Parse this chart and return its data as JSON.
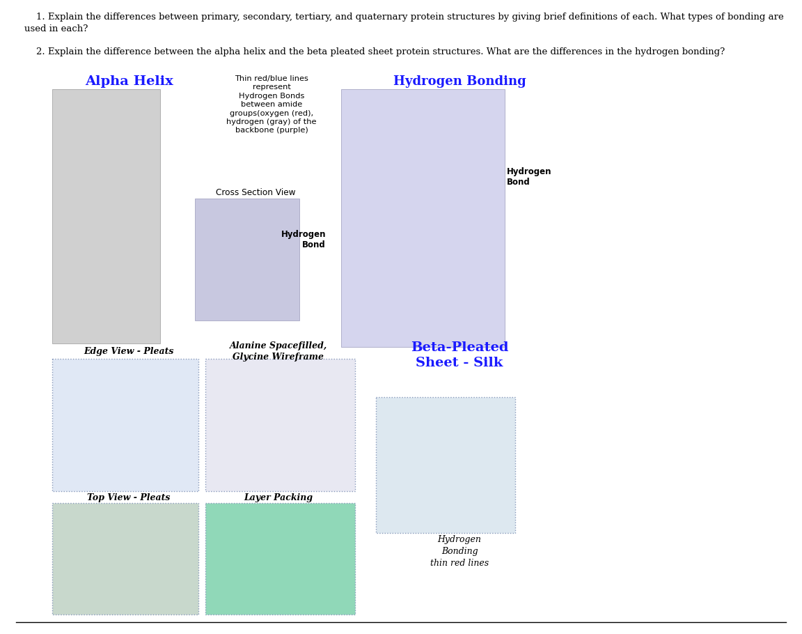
{
  "background_color": "#ffffff",
  "text_color": "#000000",
  "q1": "    1. Explain the differences between primary, secondary, tertiary, and quaternary protein structures by giving brief definitions of each. What types of bonding are used in each?",
  "q2": "    2. Explain the difference between the alpha helix and the beta pleated sheet protein structures. What are the differences in the hydrogen bonding?",
  "alpha_helix_title": "Alpha Helix",
  "alpha_helix_color": "#1a1aff",
  "hydrogen_bonding_title": "Hydrogen Bonding",
  "hydrogen_bonding_color": "#1a1aff",
  "annotation_text": "Thin red/blue lines\nrepresent\nHydrogen Bonds\nbetween amide\ngroups(oxygen (red),\nhydrogen (gray) of the\nbackbone (purple)",
  "cross_section_text": "Cross Section View",
  "hbond1_text": "Hydrogen\nBond",
  "hbond2_text": "Hydrogen\nBond",
  "edge_view_text": "Edge View - Pleats",
  "alanine_text": "Alanine Spacefilled,\nGlycine Wireframe",
  "beta_title": "Beta-Pleated\nSheet - Silk",
  "beta_color": "#1a1aff",
  "top_view_text": "Top View - Pleats",
  "layer_packing_text": "Layer Packing",
  "hbond_note": "Hydrogen\nBonding\nthin red lines",
  "font_q": 9.5,
  "font_title": 13,
  "font_label": 8.5,
  "font_annot": 8.2
}
